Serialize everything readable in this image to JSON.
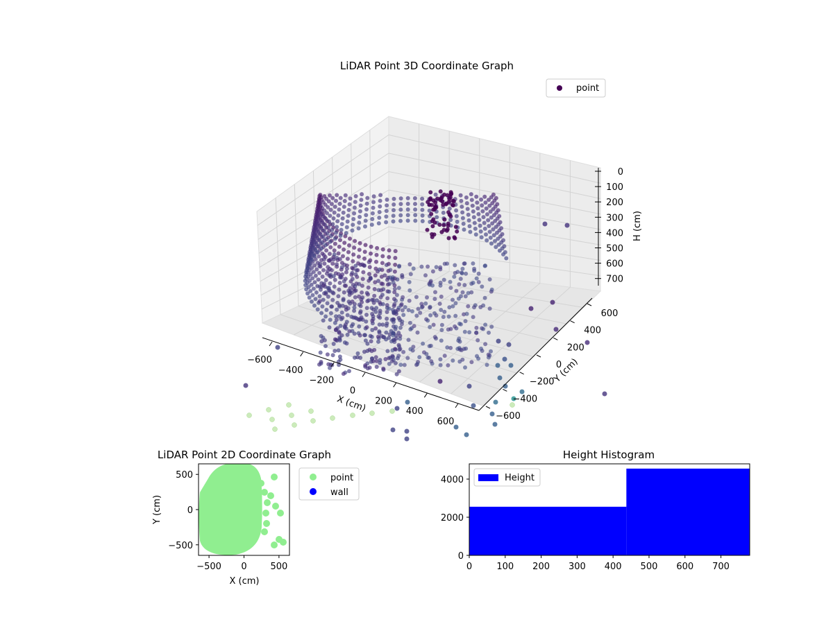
{
  "chart_data": [
    {
      "type": "scatter",
      "title": "LiDAR Point 3D Coordinate Graph",
      "xlabel": "X (cm)",
      "ylabel": "Y (cm)",
      "zlabel": "H (cm)",
      "xlim": [
        -700,
        700
      ],
      "ylim": [
        -700,
        700
      ],
      "zlim": [
        0,
        780
      ],
      "z_inverted": true,
      "xticks": [
        "−600",
        "−400",
        "−200",
        "0",
        "200",
        "400",
        "600"
      ],
      "yticks": [
        "−600",
        "−400",
        "−200",
        "0",
        "200",
        "400",
        "600"
      ],
      "zticks": [
        "0",
        "100",
        "200",
        "300",
        "400",
        "500",
        "600",
        "700"
      ],
      "grid": true,
      "legend": {
        "placement": "top-right",
        "entries": [
          {
            "label": "point",
            "color": "#440154"
          }
        ]
      },
      "colormap": "viridis"
    },
    {
      "type": "scatter",
      "title": "LiDAR Point 2D Coordinate Graph",
      "xlabel": "X (cm)",
      "ylabel": "Y (cm)",
      "xlim": [
        -650,
        650
      ],
      "ylim": [
        -650,
        650
      ],
      "xticks": [
        "−500",
        "0",
        "500"
      ],
      "yticks": [
        "500",
        "0",
        "−500"
      ],
      "legend": {
        "placement": "outside-right",
        "entries": [
          {
            "label": "point",
            "color": "#90ee90"
          },
          {
            "label": "wall",
            "color": "#0000ff"
          }
        ]
      },
      "series": [
        {
          "name": "point",
          "color": "#90ee90"
        },
        {
          "name": "wall",
          "color": "#0000ff"
        }
      ]
    },
    {
      "type": "bar",
      "title": "Height Histogram",
      "xlim": [
        0,
        780
      ],
      "ylim": [
        0,
        4800
      ],
      "xticks": [
        "0",
        "100",
        "200",
        "300",
        "400",
        "500",
        "600",
        "700"
      ],
      "yticks": [
        "0",
        "2000",
        "4000"
      ],
      "bins": [
        {
          "from": 0,
          "to": 437,
          "count": 2550
        },
        {
          "from": 437,
          "to": 780,
          "count": 4550
        }
      ],
      "color": "#0000ff",
      "legend": {
        "placement": "top-left",
        "entries": [
          {
            "label": "Height",
            "color": "#0000ff"
          }
        ]
      }
    }
  ]
}
